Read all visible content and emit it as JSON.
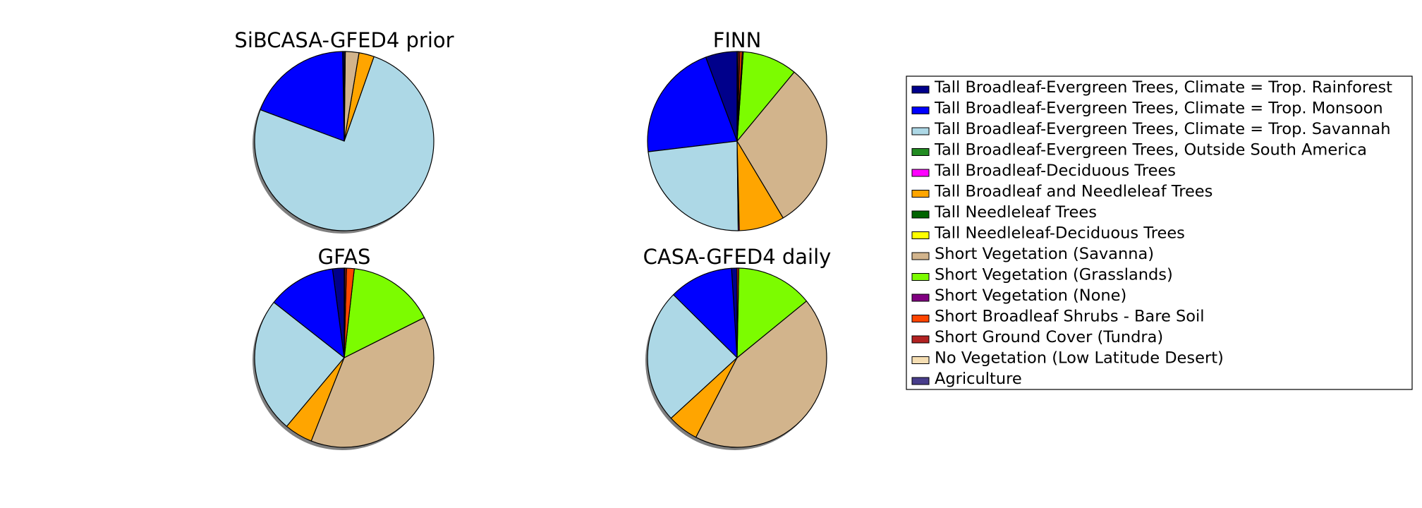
{
  "chart_data": {
    "type": "pie",
    "legend": {
      "placement": "right",
      "entries": [
        {
          "label": "Tall Broadleaf-Evergreen Trees, Climate = Trop. Rainforest",
          "color": "#00008b"
        },
        {
          "label": "Tall Broadleaf-Evergreen Trees, Climate = Trop. Monsoon",
          "color": "#0000ff"
        },
        {
          "label": "Tall Broadleaf-Evergreen Trees, Climate = Trop. Savannah",
          "color": "#add8e6"
        },
        {
          "label": "Tall Broadleaf-Evergreen Trees, Outside South America",
          "color": "#228b22"
        },
        {
          "label": "Tall Broadleaf-Deciduous Trees",
          "color": "#ff00ff"
        },
        {
          "label": "Tall Broadleaf and Needleleaf Trees",
          "color": "#ffa500"
        },
        {
          "label": "Tall Needleleaf Trees",
          "color": "#006400"
        },
        {
          "label": "Tall Needleleaf-Deciduous Trees",
          "color": "#ffff00"
        },
        {
          "label": "Short Vegetation (Savanna)",
          "color": "#d2b48c"
        },
        {
          "label": "Short Vegetation (Grasslands)",
          "color": "#7cfc00"
        },
        {
          "label": "Short Vegetation (None)",
          "color": "#800080"
        },
        {
          "label": "Short Broadleaf Shrubs - Bare Soil",
          "color": "#ff4500"
        },
        {
          "label": "Short Ground Cover (Tundra)",
          "color": "#b22222"
        },
        {
          "label": "No Vegetation (Low Latitude Desert)",
          "color": "#f5deb3"
        },
        {
          "label": "Agriculture",
          "color": "#483d8b"
        }
      ]
    },
    "pies": [
      {
        "title": "SiBCASA-GFED4 prior",
        "start_angle_deg": 90,
        "direction": "counterclockwise",
        "shadow": true,
        "values": [
          0.3,
          19.4,
          76.8,
          0,
          0,
          2.8,
          0,
          0,
          2.5,
          0,
          0,
          0,
          0,
          0,
          0.2
        ]
      },
      {
        "title": "FINN",
        "start_angle_deg": 90,
        "direction": "counterclockwise",
        "shadow": false,
        "values": [
          5.7,
          21.2,
          23.3,
          0,
          0.2,
          8.2,
          0,
          0,
          30.4,
          9.9,
          0.2,
          0.4,
          0.3,
          0,
          0.2
        ]
      },
      {
        "title": "GFAS",
        "start_angle_deg": 90,
        "direction": "counterclockwise",
        "shadow": true,
        "values": [
          2.1,
          12.3,
          24.5,
          0,
          0,
          5.1,
          0,
          0,
          38.4,
          15.8,
          0,
          1.4,
          0.3,
          0,
          0.1
        ]
      },
      {
        "title": "CASA-GFED4 daily",
        "start_angle_deg": 90,
        "direction": "counterclockwise",
        "shadow": true,
        "values": [
          1.0,
          11.6,
          24.2,
          0,
          0,
          5.6,
          0,
          0,
          43.5,
          13.8,
          0,
          0.3,
          0,
          0,
          0
        ]
      }
    ]
  }
}
